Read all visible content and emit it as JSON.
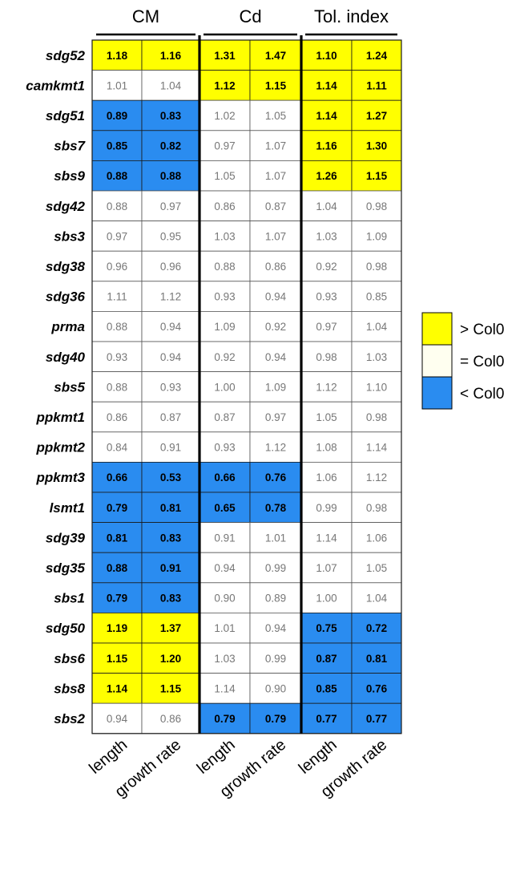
{
  "chart_data": {
    "type": "heatmap",
    "groups": [
      "CM",
      "Cd",
      "Tol. index"
    ],
    "columns": [
      "length",
      "growth rate",
      "length",
      "growth rate",
      "length",
      "growth rate"
    ],
    "rows": [
      {
        "gene": "sdg52",
        "values": [
          1.18,
          1.16,
          1.31,
          1.47,
          1.1,
          1.24
        ],
        "status": [
          "up",
          "up",
          "up",
          "up",
          "up",
          "up"
        ]
      },
      {
        "gene": "camkmt1",
        "values": [
          1.01,
          1.04,
          1.12,
          1.15,
          1.14,
          1.11
        ],
        "status": [
          "eq",
          "eq",
          "up",
          "up",
          "up",
          "up"
        ]
      },
      {
        "gene": "sdg51",
        "values": [
          0.89,
          0.83,
          1.02,
          1.05,
          1.14,
          1.27
        ],
        "status": [
          "down",
          "down",
          "eq",
          "eq",
          "up",
          "up"
        ]
      },
      {
        "gene": "sbs7",
        "values": [
          0.85,
          0.82,
          0.97,
          1.07,
          1.16,
          1.3
        ],
        "status": [
          "down",
          "down",
          "eq",
          "eq",
          "up",
          "up"
        ]
      },
      {
        "gene": "sbs9",
        "values": [
          0.88,
          0.88,
          1.05,
          1.07,
          1.26,
          1.15
        ],
        "status": [
          "down",
          "down",
          "eq",
          "eq",
          "up",
          "up"
        ]
      },
      {
        "gene": "sdg42",
        "values": [
          0.88,
          0.97,
          0.86,
          0.87,
          1.04,
          0.98
        ],
        "status": [
          "eq",
          "eq",
          "eq",
          "eq",
          "eq",
          "eq"
        ]
      },
      {
        "gene": "sbs3",
        "values": [
          0.97,
          0.95,
          1.03,
          1.07,
          1.03,
          1.09
        ],
        "status": [
          "eq",
          "eq",
          "eq",
          "eq",
          "eq",
          "eq"
        ]
      },
      {
        "gene": "sdg38",
        "values": [
          0.96,
          0.96,
          0.88,
          0.86,
          0.92,
          0.98
        ],
        "status": [
          "eq",
          "eq",
          "eq",
          "eq",
          "eq",
          "eq"
        ]
      },
      {
        "gene": "sdg36",
        "values": [
          1.11,
          1.12,
          0.93,
          0.94,
          0.93,
          0.85
        ],
        "status": [
          "eq",
          "eq",
          "eq",
          "eq",
          "eq",
          "eq"
        ]
      },
      {
        "gene": "prma",
        "values": [
          0.88,
          0.94,
          1.09,
          0.92,
          0.97,
          1.04
        ],
        "status": [
          "eq",
          "eq",
          "eq",
          "eq",
          "eq",
          "eq"
        ]
      },
      {
        "gene": "sdg40",
        "values": [
          0.93,
          0.94,
          0.92,
          0.94,
          0.98,
          1.03
        ],
        "status": [
          "eq",
          "eq",
          "eq",
          "eq",
          "eq",
          "eq"
        ]
      },
      {
        "gene": "sbs5",
        "values": [
          0.88,
          0.93,
          1.0,
          1.09,
          1.12,
          1.1
        ],
        "status": [
          "eq",
          "eq",
          "eq",
          "eq",
          "eq",
          "eq"
        ]
      },
      {
        "gene": "ppkmt1",
        "values": [
          0.86,
          0.87,
          0.87,
          0.97,
          1.05,
          0.98
        ],
        "status": [
          "eq",
          "eq",
          "eq",
          "eq",
          "eq",
          "eq"
        ]
      },
      {
        "gene": "ppkmt2",
        "values": [
          0.84,
          0.91,
          0.93,
          1.12,
          1.08,
          1.14
        ],
        "status": [
          "eq",
          "eq",
          "eq",
          "eq",
          "eq",
          "eq"
        ]
      },
      {
        "gene": "ppkmt3",
        "values": [
          0.66,
          0.53,
          0.66,
          0.76,
          1.06,
          1.12
        ],
        "status": [
          "down",
          "down",
          "down",
          "down",
          "eq",
          "eq"
        ]
      },
      {
        "gene": "lsmt1",
        "values": [
          0.79,
          0.81,
          0.65,
          0.78,
          0.99,
          0.98
        ],
        "status": [
          "down",
          "down",
          "down",
          "down",
          "eq",
          "eq"
        ]
      },
      {
        "gene": "sdg39",
        "values": [
          0.81,
          0.83,
          0.91,
          1.01,
          1.14,
          1.06
        ],
        "status": [
          "down",
          "down",
          "eq",
          "eq",
          "eq",
          "eq"
        ]
      },
      {
        "gene": "sdg35",
        "values": [
          0.88,
          0.91,
          0.94,
          0.99,
          1.07,
          1.05
        ],
        "status": [
          "down",
          "down",
          "eq",
          "eq",
          "eq",
          "eq"
        ]
      },
      {
        "gene": "sbs1",
        "values": [
          0.79,
          0.83,
          0.9,
          0.89,
          1.0,
          1.04
        ],
        "status": [
          "down",
          "down",
          "eq",
          "eq",
          "eq",
          "eq"
        ]
      },
      {
        "gene": "sdg50",
        "values": [
          1.19,
          1.37,
          1.01,
          0.94,
          0.75,
          0.72
        ],
        "status": [
          "up",
          "up",
          "eq",
          "eq",
          "down",
          "down"
        ]
      },
      {
        "gene": "sbs6",
        "values": [
          1.15,
          1.2,
          1.03,
          0.99,
          0.87,
          0.81
        ],
        "status": [
          "up",
          "up",
          "eq",
          "eq",
          "down",
          "down"
        ]
      },
      {
        "gene": "sbs8",
        "values": [
          1.14,
          1.15,
          1.14,
          0.9,
          0.85,
          0.76
        ],
        "status": [
          "up",
          "up",
          "eq",
          "eq",
          "down",
          "down"
        ]
      },
      {
        "gene": "sbs2",
        "values": [
          0.94,
          0.86,
          0.79,
          0.79,
          0.77,
          0.77
        ],
        "status": [
          "eq",
          "eq",
          "down",
          "down",
          "down",
          "down"
        ]
      }
    ],
    "legend": [
      {
        "key": "up",
        "label": "> Col0",
        "color": "#ffff00"
      },
      {
        "key": "eq",
        "label": "= Col0",
        "color": "#fffff0"
      },
      {
        "key": "down",
        "label": "< Col0",
        "color": "#2a8cf0"
      }
    ],
    "cell_colors": {
      "up": "#ffff00",
      "eq": "#ffffff",
      "down": "#2a8cf0"
    }
  }
}
